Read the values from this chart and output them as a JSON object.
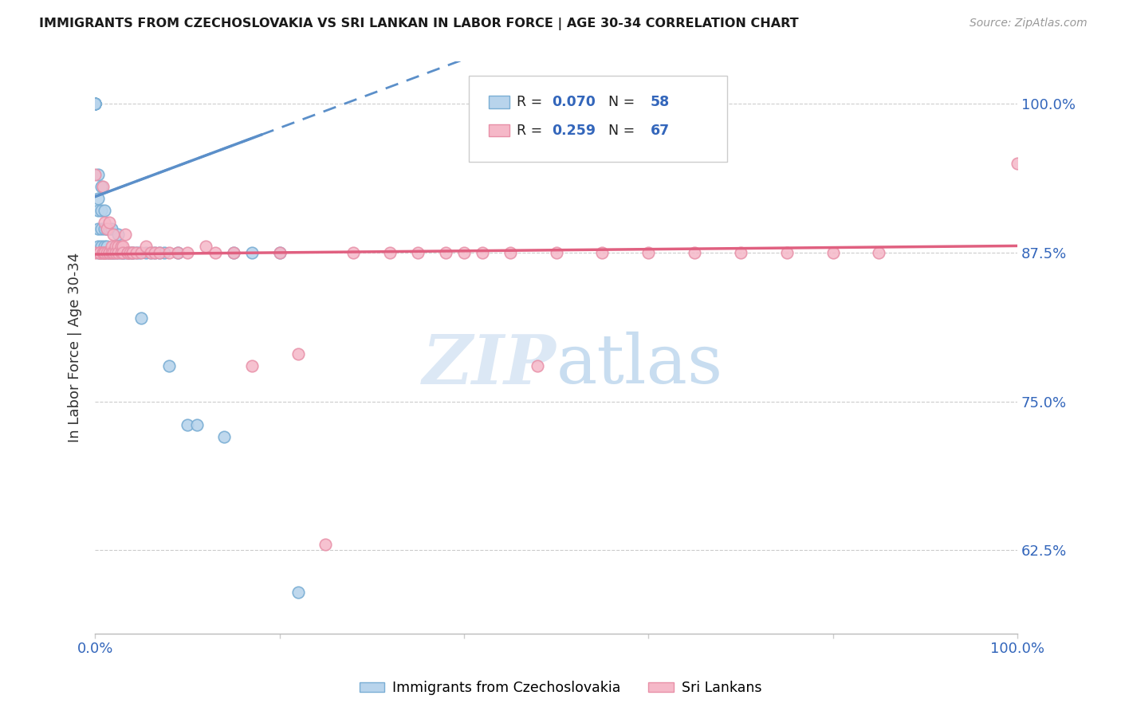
{
  "title": "IMMIGRANTS FROM CZECHOSLOVAKIA VS SRI LANKAN IN LABOR FORCE | AGE 30-34 CORRELATION CHART",
  "source": "Source: ZipAtlas.com",
  "ylabel": "In Labor Force | Age 30-34",
  "ytick_labels": [
    "62.5%",
    "75.0%",
    "87.5%",
    "100.0%"
  ],
  "ytick_values": [
    0.625,
    0.75,
    0.875,
    1.0
  ],
  "xlim": [
    0.0,
    1.0
  ],
  "ylim": [
    0.555,
    1.035
  ],
  "legend_blue_r": "0.070",
  "legend_blue_n": "58",
  "legend_pink_r": "0.259",
  "legend_pink_n": "67",
  "blue_fill": "#b8d4ec",
  "blue_edge": "#7aaed4",
  "pink_fill": "#f5b8c8",
  "pink_edge": "#e890a8",
  "blue_line_color": "#5b8fc9",
  "pink_line_color": "#e06080",
  "watermark_color": "#dce8f5",
  "blue_scatter_x": [
    0.0,
    0.0,
    0.0,
    0.0,
    0.0,
    0.0,
    0.0,
    0.0,
    0.003,
    0.003,
    0.003,
    0.003,
    0.003,
    0.003,
    0.007,
    0.007,
    0.007,
    0.007,
    0.007,
    0.01,
    0.01,
    0.01,
    0.01,
    0.013,
    0.013,
    0.013,
    0.015,
    0.015,
    0.018,
    0.018,
    0.02,
    0.022,
    0.025,
    0.025,
    0.028,
    0.03,
    0.032,
    0.035,
    0.037,
    0.04,
    0.04,
    0.045,
    0.048,
    0.05,
    0.055,
    0.06,
    0.065,
    0.07,
    0.075,
    0.08,
    0.09,
    0.1,
    0.11,
    0.14,
    0.15,
    0.17,
    0.2,
    0.22
  ],
  "blue_scatter_y": [
    1.0,
    1.0,
    1.0,
    1.0,
    1.0,
    1.0,
    1.0,
    1.0,
    0.94,
    0.92,
    0.91,
    0.895,
    0.88,
    0.875,
    0.93,
    0.91,
    0.895,
    0.88,
    0.875,
    0.91,
    0.895,
    0.88,
    0.875,
    0.895,
    0.88,
    0.875,
    0.895,
    0.875,
    0.895,
    0.875,
    0.875,
    0.875,
    0.89,
    0.875,
    0.875,
    0.875,
    0.875,
    0.875,
    0.875,
    0.875,
    0.875,
    0.875,
    0.875,
    0.82,
    0.875,
    0.875,
    0.875,
    0.875,
    0.875,
    0.78,
    0.875,
    0.73,
    0.73,
    0.72,
    0.875,
    0.875,
    0.875,
    0.59
  ],
  "pink_scatter_x": [
    0.0,
    0.0,
    0.005,
    0.005,
    0.005,
    0.008,
    0.008,
    0.008,
    0.01,
    0.01,
    0.01,
    0.013,
    0.013,
    0.015,
    0.015,
    0.015,
    0.018,
    0.018,
    0.02,
    0.02,
    0.022,
    0.022,
    0.025,
    0.025,
    0.028,
    0.028,
    0.03,
    0.03,
    0.033,
    0.035,
    0.035,
    0.038,
    0.04,
    0.04,
    0.045,
    0.05,
    0.055,
    0.06,
    0.065,
    0.07,
    0.08,
    0.09,
    0.1,
    0.12,
    0.13,
    0.15,
    0.17,
    0.2,
    0.22,
    0.25,
    0.28,
    0.32,
    0.35,
    0.38,
    0.4,
    0.42,
    0.45,
    0.48,
    0.5,
    0.55,
    0.6,
    0.65,
    0.7,
    0.75,
    0.8,
    0.85,
    1.0
  ],
  "pink_scatter_y": [
    0.94,
    0.875,
    0.875,
    0.875,
    0.875,
    0.93,
    0.875,
    0.875,
    0.9,
    0.875,
    0.875,
    0.895,
    0.875,
    0.9,
    0.875,
    0.875,
    0.88,
    0.875,
    0.89,
    0.875,
    0.88,
    0.875,
    0.88,
    0.875,
    0.88,
    0.875,
    0.88,
    0.875,
    0.89,
    0.875,
    0.875,
    0.875,
    0.875,
    0.875,
    0.875,
    0.875,
    0.88,
    0.875,
    0.875,
    0.875,
    0.875,
    0.875,
    0.875,
    0.88,
    0.875,
    0.875,
    0.78,
    0.875,
    0.79,
    0.63,
    0.875,
    0.875,
    0.875,
    0.875,
    0.875,
    0.875,
    0.875,
    0.78,
    0.875,
    0.875,
    0.875,
    0.875,
    0.875,
    0.875,
    0.875,
    0.875,
    0.95
  ]
}
